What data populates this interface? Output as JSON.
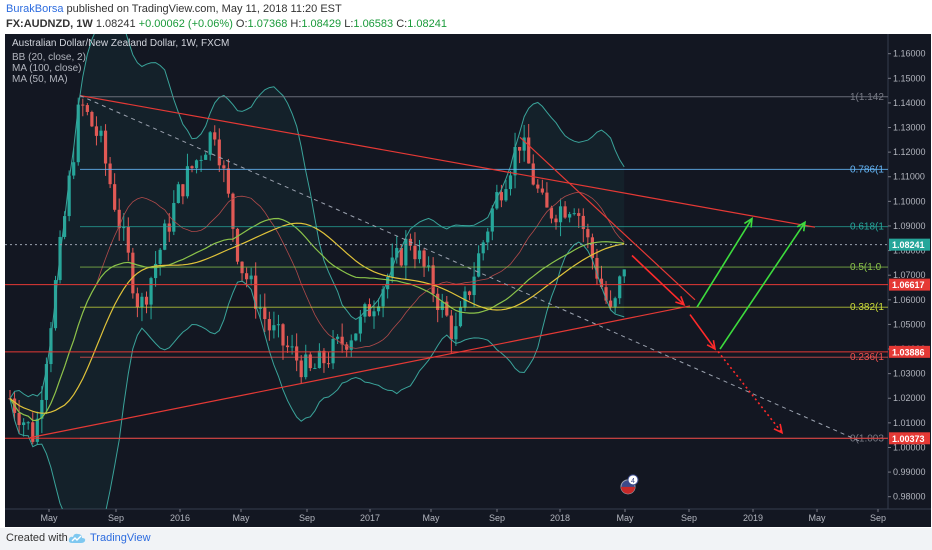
{
  "header": {
    "author": "BurakBorsa",
    "published": "published on TradingView.com, May 11, 2018 11:20 EST",
    "symbol": "FX:AUDNZD, 1W",
    "last": "1.08241",
    "change": "+0.00062 (+0.06%)",
    "o_label": "O:",
    "o": "1.07368",
    "h_label": "H:",
    "h": "1.08429",
    "l_label": "L:",
    "l": "1.06583",
    "c_label": "C:",
    "c": "1.08241"
  },
  "footer": {
    "created": "Created with",
    "brand": "TradingView"
  },
  "chart_data": {
    "type": "candlestick",
    "title": "Australian Dollar/New Zealand Dollar, 1W, FXCM",
    "indicators": [
      "BB (20, close, 2)",
      "MA (100, close)",
      "MA (50, MA)"
    ],
    "y_axis": {
      "range": [
        0.975,
        1.168
      ],
      "ticks": [
        "1.16000",
        "1.15000",
        "1.14000",
        "1.13000",
        "1.12000",
        "1.11000",
        "1.10000",
        "1.09000",
        "1.08000",
        "1.07000",
        "1.06000",
        "1.05000",
        "1.04000",
        "1.03000",
        "1.02000",
        "1.01000",
        "1.00000",
        "0.99000",
        "0.98000"
      ]
    },
    "x_axis": {
      "ticks": [
        {
          "label": "May",
          "x": 49
        },
        {
          "label": "Sep",
          "x": 116
        },
        {
          "label": "2016",
          "x": 180
        },
        {
          "label": "May",
          "x": 241
        },
        {
          "label": "Sep",
          "x": 307
        },
        {
          "label": "2017",
          "x": 370
        },
        {
          "label": "May",
          "x": 431
        },
        {
          "label": "Sep",
          "x": 497
        },
        {
          "label": "2018",
          "x": 560
        },
        {
          "label": "May",
          "x": 625
        },
        {
          "label": "Sep",
          "x": 689
        },
        {
          "label": "2019",
          "x": 753
        },
        {
          "label": "May",
          "x": 817
        },
        {
          "label": "Sep",
          "x": 878
        }
      ]
    },
    "fib_levels": [
      {
        "label": "1(1.142",
        "value": 1.1425,
        "color": "#787b86"
      },
      {
        "label": "0.786(1",
        "value": 1.113,
        "color": "#64b5f6"
      },
      {
        "label": "0.618(1",
        "value": 1.0897,
        "color": "#26a69a"
      },
      {
        "label": "0.5(1.0",
        "value": 1.0733,
        "color": "#8bc34a"
      },
      {
        "label": "0.382(1",
        "value": 1.057,
        "color": "#cddc39"
      },
      {
        "label": "0.236(1",
        "value": 1.0367,
        "color": "#ef5350"
      },
      {
        "label": "0(1.003",
        "value": 1.0037,
        "color": "#787b86"
      }
    ],
    "price_labels": [
      {
        "value": 1.08241,
        "text": "1.08241",
        "bg": "#26a69a",
        "fg": "#ffffff"
      },
      {
        "value": 1.06617,
        "text": "1.06617",
        "bg": "#e53935",
        "fg": "#ffffff"
      },
      {
        "value": 1.03886,
        "text": "1.03886",
        "bg": "#e53935",
        "fg": "#ffffff"
      },
      {
        "value": 1.00373,
        "text": "1.00373",
        "bg": "#e53935",
        "fg": "#ffffff"
      }
    ],
    "horizontal_lines": [
      {
        "value": 1.06617,
        "color": "#e53935"
      },
      {
        "value": 1.03886,
        "color": "#e53935"
      },
      {
        "value": 1.00373,
        "color": "#e53935"
      },
      {
        "value": 1.08241,
        "color": "#9aa1ae",
        "dash": true
      }
    ],
    "trendlines": [
      {
        "from": [
          80,
          1.143
        ],
        "to": [
          815,
          1.0895
        ],
        "color": "#e53935",
        "width": 1.2
      },
      {
        "from": [
          30,
          1.004
        ],
        "to": [
          690,
          1.0575
        ],
        "color": "#e53935",
        "width": 1.2
      },
      {
        "from": [
          520,
          1.126
        ],
        "to": [
          695,
          1.06
        ],
        "color": "#e53935",
        "width": 1.2
      },
      {
        "from": [
          80,
          1.143
        ],
        "to": [
          860,
          1.0025
        ],
        "color": "#9aa1ae",
        "width": 1,
        "dash": true
      }
    ],
    "arrows": [
      {
        "from": [
          632,
          1.078
        ],
        "to": [
          684,
          1.058
        ],
        "color": "#ff2a2a",
        "dashed": false
      },
      {
        "from": [
          697,
          1.057
        ],
        "to": [
          752,
          1.093
        ],
        "color": "#3ddc3d",
        "dashed": false
      },
      {
        "from": [
          690,
          1.054
        ],
        "to": [
          715,
          1.04
        ],
        "color": "#ff2a2a",
        "dashed": false
      },
      {
        "from": [
          720,
          1.04
        ],
        "to": [
          805,
          1.0915
        ],
        "color": "#3ddc3d",
        "dashed": false
      },
      {
        "from": [
          718,
          1.039
        ],
        "to": [
          782,
          1.006
        ],
        "color": "#ff2a2a",
        "dashed": true
      }
    ],
    "events": [
      {
        "x": 628,
        "value": 0.984,
        "count": "4"
      }
    ],
    "ohlc": {
      "open": 1.07368,
      "high": 1.08429,
      "low": 1.06583,
      "close": 1.08241
    }
  }
}
